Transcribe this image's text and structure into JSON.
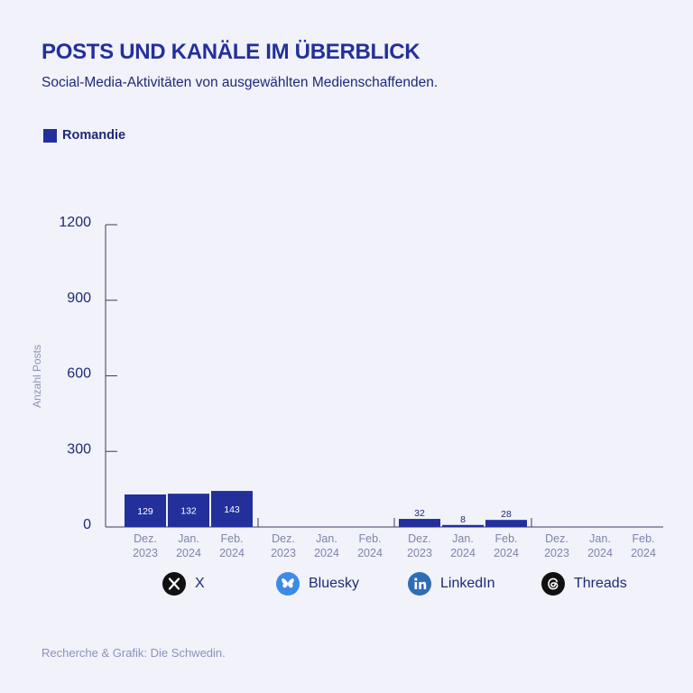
{
  "header": {
    "title": "POSTS UND KANÄLE IM ÜBERBLICK",
    "subtitle": "Social-Media-Aktivitäten von ausgewählten Medienschaffenden."
  },
  "legend": {
    "label": "Romandie",
    "color": "#232f9a"
  },
  "channels": [
    {
      "name": "X",
      "icon": "x-logo-icon"
    },
    {
      "name": "Bluesky",
      "icon": "bluesky-butterfly-icon"
    },
    {
      "name": "LinkedIn",
      "icon": "linkedin-icon"
    },
    {
      "name": "Threads",
      "icon": "threads-icon"
    }
  ],
  "chart_data": {
    "type": "bar",
    "ylabel": "Anzahl Posts",
    "ylim": [
      0,
      1200
    ],
    "yticks": [
      0,
      300,
      600,
      900,
      1200
    ],
    "grid": false,
    "legend_position": "top-left",
    "groups": [
      {
        "channel": "X",
        "months": [
          "Dez.\n2023",
          "Jan.\n2024",
          "Feb.\n2024"
        ],
        "values": [
          129,
          132,
          143
        ],
        "labels": [
          "129",
          "132",
          "143"
        ]
      },
      {
        "channel": "Bluesky",
        "months": [
          "Dez.\n2023",
          "Jan.\n2024",
          "Feb.\n2024"
        ],
        "values": [
          0,
          0,
          0
        ],
        "labels": [
          "",
          "",
          ""
        ]
      },
      {
        "channel": "LinkedIn",
        "months": [
          "Dez.\n2023",
          "Jan.\n2024",
          "Feb.\n2024"
        ],
        "values": [
          32,
          8,
          28
        ],
        "labels": [
          "32",
          "8",
          "28"
        ]
      },
      {
        "channel": "Threads",
        "months": [
          "Dez.\n2023",
          "Jan.\n2024",
          "Feb.\n2024"
        ],
        "values": [
          0,
          0,
          0
        ],
        "labels": [
          "",
          "",
          ""
        ]
      }
    ]
  },
  "footer": {
    "credit": "Recherche & Grafik: Die Schwedin."
  }
}
